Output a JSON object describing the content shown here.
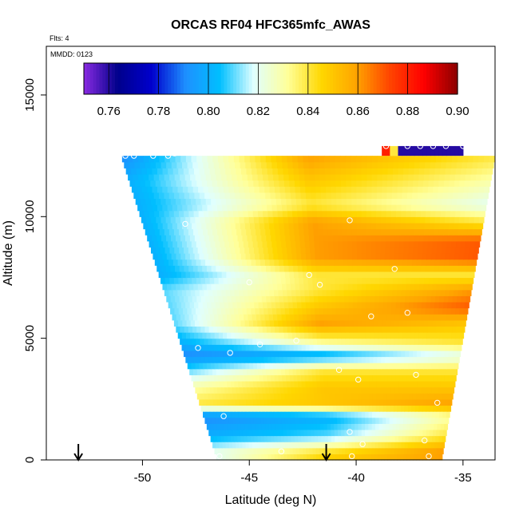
{
  "chart_data": {
    "type": "heatmap",
    "title": "ORCAS RF04 HFC365mfc_AWAS",
    "annotation_flights": "Flts: 4",
    "annotation_date": "MMDD: 0123",
    "xlabel": "Latitude (deg N)",
    "ylabel": "Altitude (m)",
    "xlim": [
      -54.5,
      -33.5
    ],
    "ylim": [
      0,
      17000
    ],
    "x_ticks": [
      -50,
      -45,
      -40,
      -35
    ],
    "x_tick_labels": [
      "-50",
      "-45",
      "-40",
      "-35"
    ],
    "y_ticks": [
      0,
      5000,
      10000,
      15000
    ],
    "y_tick_labels": [
      "0",
      "5000",
      "10000",
      "15000"
    ],
    "colorbar": {
      "min": 0.75,
      "max": 0.9,
      "ticks": [
        0.76,
        0.78,
        0.8,
        0.82,
        0.84,
        0.86,
        0.88,
        0.9
      ],
      "tick_labels": [
        "0.76",
        "0.78",
        "0.80",
        "0.82",
        "0.84",
        "0.86",
        "0.88",
        "0.90"
      ],
      "colors": [
        "#8a2be2",
        "#00008b",
        "#0000cd",
        "#1e90ff",
        "#00bfff",
        "#e0ffff",
        "#ffff99",
        "#ffd700",
        "#ffa500",
        "#ff4500",
        "#ff0000",
        "#8b0000"
      ]
    },
    "arrows_latitude": [
      -53.0,
      -41.4
    ],
    "domain": {
      "alt_top": 12500,
      "lat_left_bottom": -46.5,
      "lat_left_top": -51.0,
      "lat_right_bottom": -36.0,
      "lat_right_top": -33.5
    },
    "top_strip": {
      "lat_range": [
        -38.8,
        -35.0
      ],
      "alt_range": [
        12500,
        12900
      ],
      "value": 0.76
    },
    "layers": [
      {
        "alt": 12500,
        "left": 0.79,
        "mid": 0.86,
        "right": 0.84
      },
      {
        "alt": 11500,
        "left": 0.8,
        "mid": 0.85,
        "right": 0.83
      },
      {
        "alt": 10500,
        "left": 0.8,
        "mid": 0.84,
        "right": 0.82
      },
      {
        "alt": 9800,
        "left": 0.8,
        "mid": 0.86,
        "right": 0.84
      },
      {
        "alt": 9000,
        "left": 0.8,
        "mid": 0.86,
        "right": 0.87
      },
      {
        "alt": 8300,
        "left": 0.8,
        "mid": 0.86,
        "right": 0.87
      },
      {
        "alt": 7600,
        "left": 0.8,
        "mid": 0.84,
        "right": 0.84
      },
      {
        "alt": 7000,
        "left": 0.81,
        "mid": 0.84,
        "right": 0.86
      },
      {
        "alt": 6300,
        "left": 0.81,
        "mid": 0.85,
        "right": 0.87
      },
      {
        "alt": 5600,
        "left": 0.81,
        "mid": 0.86,
        "right": 0.85
      },
      {
        "alt": 4800,
        "left": 0.8,
        "mid": 0.83,
        "right": 0.84
      },
      {
        "alt": 4300,
        "left": 0.79,
        "mid": 0.8,
        "right": 0.82
      },
      {
        "alt": 3700,
        "left": 0.81,
        "mid": 0.84,
        "right": 0.84
      },
      {
        "alt": 3000,
        "left": 0.83,
        "mid": 0.85,
        "right": 0.85
      },
      {
        "alt": 2300,
        "left": 0.84,
        "mid": 0.85,
        "right": 0.86
      },
      {
        "alt": 1800,
        "left": 0.79,
        "mid": 0.8,
        "right": 0.83
      },
      {
        "alt": 1000,
        "left": 0.8,
        "mid": 0.81,
        "right": 0.84
      },
      {
        "alt": 400,
        "left": 0.82,
        "mid": 0.84,
        "right": 0.86
      },
      {
        "alt": 0,
        "left": 0.82,
        "mid": 0.85,
        "right": 0.86
      }
    ],
    "sample_points": [
      {
        "lat": -50.8,
        "alt": 12500
      },
      {
        "lat": -50.4,
        "alt": 12500
      },
      {
        "lat": -49.5,
        "alt": 12500
      },
      {
        "lat": -48.8,
        "alt": 12500
      },
      {
        "lat": -48.5,
        "alt": 12600
      },
      {
        "lat": -38.6,
        "alt": 12900
      },
      {
        "lat": -37.6,
        "alt": 12900
      },
      {
        "lat": -37.0,
        "alt": 12900
      },
      {
        "lat": -36.4,
        "alt": 12900
      },
      {
        "lat": -35.8,
        "alt": 12900
      },
      {
        "lat": -35.0,
        "alt": 12900
      },
      {
        "lat": -48.0,
        "alt": 9700
      },
      {
        "lat": -40.3,
        "alt": 9850
      },
      {
        "lat": -38.2,
        "alt": 7850
      },
      {
        "lat": -33.6,
        "alt": 8150
      },
      {
        "lat": -42.2,
        "alt": 7600
      },
      {
        "lat": -41.7,
        "alt": 7200
      },
      {
        "lat": -45.0,
        "alt": 7300
      },
      {
        "lat": -37.6,
        "alt": 6050
      },
      {
        "lat": -39.3,
        "alt": 5900
      },
      {
        "lat": -42.8,
        "alt": 4900
      },
      {
        "lat": -44.5,
        "alt": 4750
      },
      {
        "lat": -45.9,
        "alt": 4400
      },
      {
        "lat": -47.4,
        "alt": 4600
      },
      {
        "lat": -34.8,
        "alt": 4900
      },
      {
        "lat": -40.8,
        "alt": 3700
      },
      {
        "lat": -39.9,
        "alt": 3300
      },
      {
        "lat": -37.2,
        "alt": 3500
      },
      {
        "lat": -36.2,
        "alt": 2350
      },
      {
        "lat": -46.2,
        "alt": 1800
      },
      {
        "lat": -40.3,
        "alt": 1150
      },
      {
        "lat": -39.7,
        "alt": 650
      },
      {
        "lat": -36.8,
        "alt": 800
      },
      {
        "lat": -46.4,
        "alt": 150
      },
      {
        "lat": -43.5,
        "alt": 350
      },
      {
        "lat": -40.2,
        "alt": 150
      },
      {
        "lat": -36.6,
        "alt": 150
      }
    ]
  }
}
